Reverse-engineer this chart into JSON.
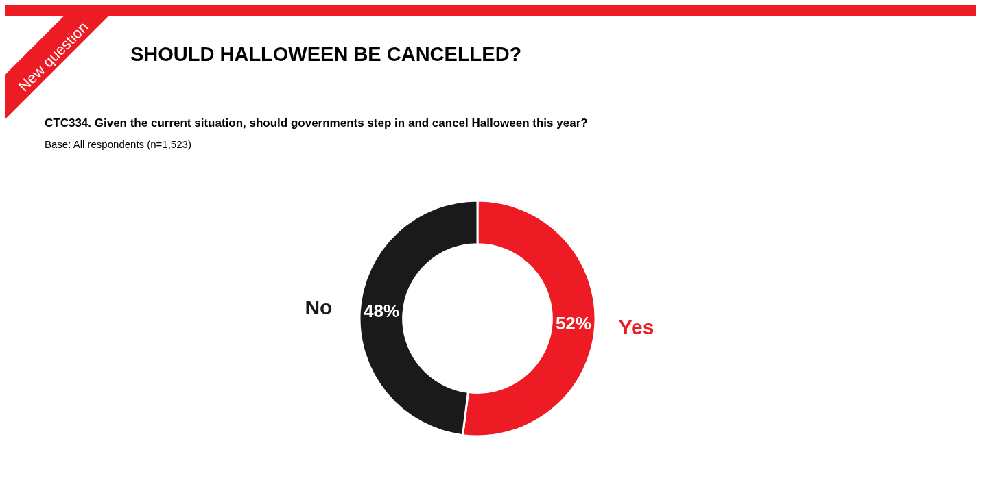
{
  "chart_data": {
    "type": "donut",
    "title": "SHOULD HALLOWEEN BE CANCELLED?",
    "subtitle": "CTC334. Given the current situation, should governments step in and cancel Halloween this year?",
    "annotations": [
      "Base: All respondents (n=1,523)",
      "New question"
    ],
    "categories": [
      "Yes",
      "No"
    ],
    "values": [
      52,
      48
    ],
    "colors": [
      "#ed1c24",
      "#1a1a1a"
    ],
    "value_labels": [
      "52%",
      "48%"
    ],
    "legend": false
  }
}
